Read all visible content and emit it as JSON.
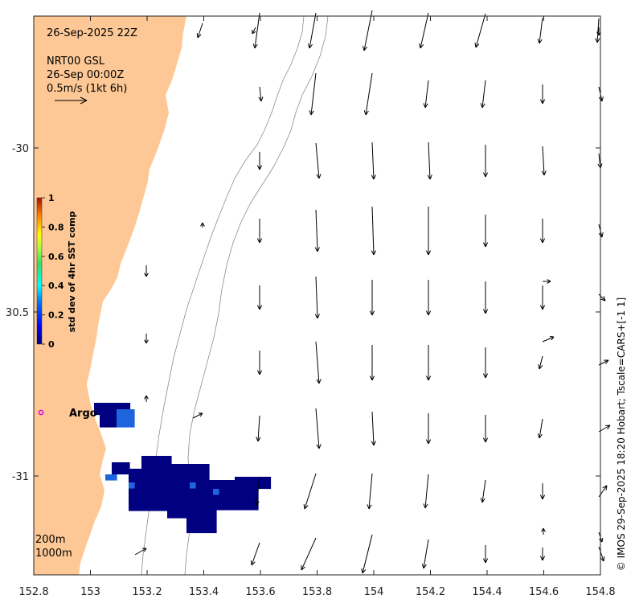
{
  "info": {
    "timestamp": "26-Sep-2025 22Z",
    "product": "NRT00 GSL",
    "product_time": "26-Sep 00:00Z",
    "arrow_scale": "0.5m/s (1kt 6h)"
  },
  "credit": "© IMOS 29-Sep-2025 18:20 Hobart; Tscale=CARS+[-1 1]",
  "colorbar": {
    "title": "std dev of 4hr SST comp",
    "ticks": [
      "1",
      "0.8",
      "0.6",
      "0.4",
      "0.2",
      "0"
    ],
    "colors": [
      "#00007f",
      "#0000ff",
      "#0080ff",
      "#00ffff",
      "#80ff80",
      "#ffff00",
      "#ff8000",
      "#ff0000",
      "#800000"
    ]
  },
  "argo": {
    "label": "Argo",
    "marker_color": "#e000e0"
  },
  "contours": {
    "shallow": "200m",
    "deep": "1000m"
  },
  "axes": {
    "x_ticks": [
      "152.8",
      "153",
      "153.2",
      "153.4",
      "153.6",
      "153.8",
      "154",
      "154.2",
      "154.4",
      "154.6",
      "154.8"
    ],
    "y_ticks": [
      "-30",
      "30.5",
      "-31"
    ]
  },
  "colors": {
    "land": "#fdc895",
    "sst_blob": "#000080",
    "sst_light": "#1e64dc"
  }
}
